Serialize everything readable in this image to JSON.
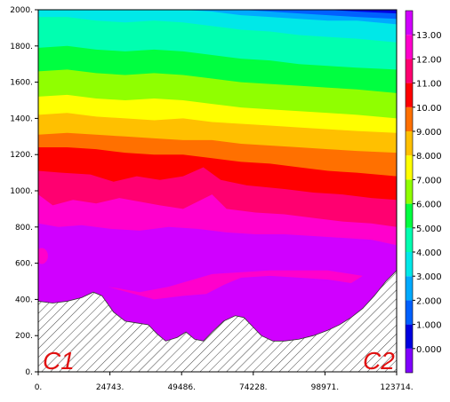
{
  "chart_data": {
    "type": "heatmap",
    "title": "",
    "xlabel": "",
    "ylabel": "",
    "xlim": [
      0,
      123714
    ],
    "ylim": [
      0,
      2000
    ],
    "x_ticks": [
      "0.",
      "24743.",
      "49486.",
      "74228.",
      "98971.",
      "123714."
    ],
    "y_ticks": [
      "0.",
      "200.",
      "400.",
      "600.",
      "800.",
      "1000.",
      "1200.",
      "1400.",
      "1600.",
      "1800.",
      "2000."
    ],
    "colorbar": {
      "range": [
        -1,
        14
      ],
      "tick_labels": [
        "0.000",
        "1.000",
        "2.000",
        "3.000",
        "4.000",
        "5.000",
        "6.000",
        "7.000",
        "8.000",
        "9.000",
        "10.00",
        "11.00",
        "12.00",
        "13.00"
      ],
      "levels": [
        {
          "min": -1,
          "max": 0,
          "color": "#8000ff"
        },
        {
          "min": 0,
          "max": 1,
          "color": "#0000e0"
        },
        {
          "min": 1,
          "max": 2,
          "color": "#0060ff"
        },
        {
          "min": 2,
          "max": 3,
          "color": "#00aaff"
        },
        {
          "min": 3,
          "max": 4,
          "color": "#00e8e8"
        },
        {
          "min": 4,
          "max": 5,
          "color": "#00ffb0"
        },
        {
          "min": 5,
          "max": 6,
          "color": "#00ff40"
        },
        {
          "min": 6,
          "max": 7,
          "color": "#90ff00"
        },
        {
          "min": 7,
          "max": 8,
          "color": "#ffff00"
        },
        {
          "min": 8,
          "max": 9,
          "color": "#ffc000"
        },
        {
          "min": 9,
          "max": 10,
          "color": "#ff7000"
        },
        {
          "min": 10,
          "max": 11,
          "color": "#ff0000"
        },
        {
          "min": 11,
          "max": 12,
          "color": "#ff0070"
        },
        {
          "min": 12,
          "max": 13,
          "color": "#ff00cc"
        },
        {
          "min": 13,
          "max": 14,
          "color": "#d000ff"
        }
      ]
    },
    "field_bands": [
      {
        "level_index": 14,
        "boundary": [
          [
            0,
            700
          ],
          [
            10000,
            690
          ],
          [
            20000,
            660
          ],
          [
            30000,
            640
          ],
          [
            40000,
            650
          ],
          [
            50000,
            640
          ],
          [
            60000,
            660
          ],
          [
            70000,
            680
          ],
          [
            80000,
            700
          ],
          [
            90000,
            710
          ],
          [
            100000,
            700
          ],
          [
            110000,
            680
          ],
          [
            123714,
            640
          ]
        ]
      },
      {
        "level_index": 13,
        "boundary": [
          [
            0,
            820
          ],
          [
            7000,
            800
          ],
          [
            15000,
            810
          ],
          [
            25000,
            790
          ],
          [
            35000,
            780
          ],
          [
            45000,
            800
          ],
          [
            55000,
            790
          ],
          [
            65000,
            770
          ],
          [
            75000,
            760
          ],
          [
            85000,
            760
          ],
          [
            95000,
            750
          ],
          [
            105000,
            740
          ],
          [
            115000,
            730
          ],
          [
            123714,
            700
          ]
        ]
      },
      {
        "level_index": 12,
        "boundary": [
          [
            0,
            980
          ],
          [
            5000,
            920
          ],
          [
            12000,
            950
          ],
          [
            20000,
            930
          ],
          [
            28000,
            960
          ],
          [
            35000,
            940
          ],
          [
            42000,
            920
          ],
          [
            50000,
            900
          ],
          [
            55000,
            940
          ],
          [
            60000,
            980
          ],
          [
            65000,
            900
          ],
          [
            75000,
            880
          ],
          [
            85000,
            870
          ],
          [
            95000,
            850
          ],
          [
            105000,
            830
          ],
          [
            115000,
            820
          ],
          [
            123714,
            800
          ]
        ]
      },
      {
        "level_index": 11,
        "boundary": [
          [
            0,
            1110
          ],
          [
            8000,
            1100
          ],
          [
            18000,
            1090
          ],
          [
            26000,
            1050
          ],
          [
            34000,
            1080
          ],
          [
            42000,
            1060
          ],
          [
            50000,
            1080
          ],
          [
            57000,
            1130
          ],
          [
            63000,
            1060
          ],
          [
            72000,
            1030
          ],
          [
            85000,
            1010
          ],
          [
            95000,
            990
          ],
          [
            105000,
            980
          ],
          [
            115000,
            960
          ],
          [
            123714,
            950
          ]
        ]
      },
      {
        "level_index": 10,
        "boundary": [
          [
            0,
            1240
          ],
          [
            10000,
            1240
          ],
          [
            20000,
            1230
          ],
          [
            30000,
            1210
          ],
          [
            40000,
            1200
          ],
          [
            50000,
            1200
          ],
          [
            60000,
            1180
          ],
          [
            70000,
            1160
          ],
          [
            80000,
            1150
          ],
          [
            90000,
            1130
          ],
          [
            100000,
            1110
          ],
          [
            110000,
            1100
          ],
          [
            123714,
            1080
          ]
        ]
      },
      {
        "level_index": 9,
        "boundary": [
          [
            0,
            1310
          ],
          [
            10000,
            1320
          ],
          [
            20000,
            1310
          ],
          [
            30000,
            1300
          ],
          [
            40000,
            1290
          ],
          [
            50000,
            1280
          ],
          [
            60000,
            1280
          ],
          [
            70000,
            1260
          ],
          [
            80000,
            1250
          ],
          [
            90000,
            1240
          ],
          [
            100000,
            1230
          ],
          [
            110000,
            1220
          ],
          [
            123714,
            1210
          ]
        ]
      },
      {
        "level_index": 8,
        "boundary": [
          [
            0,
            1420
          ],
          [
            10000,
            1430
          ],
          [
            20000,
            1410
          ],
          [
            30000,
            1400
          ],
          [
            40000,
            1390
          ],
          [
            50000,
            1400
          ],
          [
            60000,
            1380
          ],
          [
            70000,
            1370
          ],
          [
            80000,
            1360
          ],
          [
            90000,
            1350
          ],
          [
            100000,
            1340
          ],
          [
            110000,
            1330
          ],
          [
            123714,
            1320
          ]
        ]
      },
      {
        "level_index": 7,
        "boundary": [
          [
            0,
            1520
          ],
          [
            10000,
            1530
          ],
          [
            20000,
            1510
          ],
          [
            30000,
            1500
          ],
          [
            40000,
            1510
          ],
          [
            50000,
            1500
          ],
          [
            60000,
            1480
          ],
          [
            70000,
            1460
          ],
          [
            80000,
            1450
          ],
          [
            90000,
            1440
          ],
          [
            100000,
            1430
          ],
          [
            110000,
            1420
          ],
          [
            123714,
            1400
          ]
        ]
      },
      {
        "level_index": 6,
        "boundary": [
          [
            0,
            1660
          ],
          [
            10000,
            1670
          ],
          [
            20000,
            1650
          ],
          [
            30000,
            1640
          ],
          [
            40000,
            1650
          ],
          [
            50000,
            1640
          ],
          [
            60000,
            1620
          ],
          [
            70000,
            1600
          ],
          [
            80000,
            1590
          ],
          [
            90000,
            1580
          ],
          [
            100000,
            1570
          ],
          [
            110000,
            1560
          ],
          [
            123714,
            1540
          ]
        ]
      },
      {
        "level_index": 5,
        "boundary": [
          [
            0,
            1790
          ],
          [
            10000,
            1800
          ],
          [
            20000,
            1780
          ],
          [
            30000,
            1770
          ],
          [
            40000,
            1780
          ],
          [
            50000,
            1770
          ],
          [
            60000,
            1750
          ],
          [
            70000,
            1730
          ],
          [
            80000,
            1720
          ],
          [
            90000,
            1700
          ],
          [
            100000,
            1690
          ],
          [
            110000,
            1680
          ],
          [
            123714,
            1670
          ]
        ]
      },
      {
        "level_index": 4,
        "boundary": [
          [
            0,
            1960
          ],
          [
            10000,
            1960
          ],
          [
            20000,
            1940
          ],
          [
            30000,
            1930
          ],
          [
            40000,
            1940
          ],
          [
            50000,
            1930
          ],
          [
            60000,
            1910
          ],
          [
            70000,
            1890
          ],
          [
            80000,
            1880
          ],
          [
            90000,
            1860
          ],
          [
            100000,
            1850
          ],
          [
            110000,
            1840
          ],
          [
            123714,
            1820
          ]
        ]
      },
      {
        "level_index": 3,
        "boundary": [
          [
            0,
            2000
          ],
          [
            30000,
            2000
          ],
          [
            50000,
            2000
          ],
          [
            60000,
            1990
          ],
          [
            70000,
            1970
          ],
          [
            80000,
            1960
          ],
          [
            90000,
            1950
          ],
          [
            100000,
            1940
          ],
          [
            110000,
            1940
          ],
          [
            123714,
            1920
          ]
        ]
      },
      {
        "level_index": 2,
        "boundary": [
          [
            0,
            2000
          ],
          [
            70000,
            2000
          ],
          [
            80000,
            1990
          ],
          [
            90000,
            1980
          ],
          [
            100000,
            1970
          ],
          [
            110000,
            1960
          ],
          [
            123714,
            1950
          ]
        ]
      },
      {
        "level_index": 1,
        "boundary": [
          [
            0,
            2000
          ],
          [
            100000,
            2000
          ],
          [
            110000,
            1990
          ],
          [
            123714,
            1980
          ]
        ]
      }
    ],
    "terrain_profile": [
      [
        0,
        390
      ],
      [
        5000,
        380
      ],
      [
        10000,
        390
      ],
      [
        15000,
        410
      ],
      [
        19000,
        440
      ],
      [
        22000,
        420
      ],
      [
        26000,
        330
      ],
      [
        30000,
        280
      ],
      [
        34000,
        270
      ],
      [
        38000,
        260
      ],
      [
        41000,
        210
      ],
      [
        44000,
        170
      ],
      [
        48000,
        190
      ],
      [
        51000,
        220
      ],
      [
        54000,
        180
      ],
      [
        57000,
        170
      ],
      [
        60000,
        220
      ],
      [
        64000,
        280
      ],
      [
        68000,
        310
      ],
      [
        71000,
        300
      ],
      [
        74000,
        250
      ],
      [
        77000,
        200
      ],
      [
        81000,
        170
      ],
      [
        85000,
        170
      ],
      [
        90000,
        180
      ],
      [
        95000,
        200
      ],
      [
        100000,
        230
      ],
      [
        104000,
        260
      ],
      [
        108000,
        300
      ],
      [
        112000,
        350
      ],
      [
        116000,
        420
      ],
      [
        120000,
        500
      ],
      [
        123714,
        560
      ]
    ],
    "low_region_polygon": [
      [
        26000,
        420
      ],
      [
        30000,
        390
      ],
      [
        36000,
        370
      ],
      [
        44000,
        320
      ],
      [
        50000,
        330
      ],
      [
        56000,
        350
      ],
      [
        62000,
        420
      ],
      [
        68000,
        490
      ],
      [
        74000,
        510
      ],
      [
        85000,
        490
      ],
      [
        95000,
        470
      ],
      [
        104000,
        470
      ],
      [
        110000,
        460
      ],
      [
        106000,
        360
      ],
      [
        100000,
        300
      ],
      [
        92000,
        260
      ],
      [
        82000,
        240
      ],
      [
        72000,
        250
      ],
      [
        65000,
        260
      ],
      [
        60000,
        240
      ],
      [
        54000,
        210
      ],
      [
        48000,
        230
      ],
      [
        42000,
        250
      ],
      [
        36000,
        300
      ],
      [
        30000,
        330
      ],
      [
        26000,
        360
      ]
    ],
    "labels": {
      "left": "C1",
      "right": "C2"
    }
  }
}
